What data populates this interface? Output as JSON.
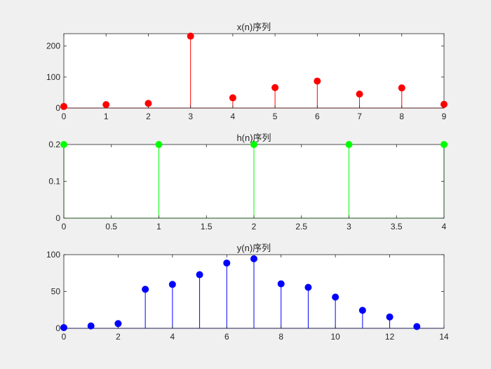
{
  "chart_data": [
    {
      "type": "stem",
      "title": "x(n)序列",
      "color": "#ff0000",
      "x": [
        0,
        1,
        2,
        3,
        4,
        5,
        6,
        7,
        8,
        9
      ],
      "y": [
        5,
        11,
        15,
        232,
        33,
        66,
        87,
        45,
        65,
        12
      ],
      "xlim": [
        0,
        9
      ],
      "ylim": [
        0,
        240
      ],
      "xticks": [
        0,
        1,
        2,
        3,
        4,
        5,
        6,
        7,
        8,
        9
      ],
      "xtick_labels": [
        "0",
        "1",
        "2",
        "3",
        "4",
        "5",
        "6",
        "7",
        "8",
        "9"
      ],
      "yticks": [
        0,
        100,
        200
      ],
      "ytick_labels": [
        "0",
        "100",
        "200"
      ],
      "xlabel": "",
      "ylabel": "",
      "grid": false
    },
    {
      "type": "stem",
      "title": "h(n)序列",
      "color": "#00ff00",
      "x": [
        0,
        1,
        2,
        3,
        4
      ],
      "y": [
        0.2,
        0.2,
        0.2,
        0.2,
        0.2
      ],
      "xlim": [
        0,
        4
      ],
      "ylim": [
        0,
        0.2
      ],
      "xticks": [
        0,
        0.5,
        1,
        1.5,
        2,
        2.5,
        3,
        3.5,
        4
      ],
      "xtick_labels": [
        "0",
        "0.5",
        "1",
        "1.5",
        "2",
        "2.5",
        "3",
        "3.5",
        "4"
      ],
      "yticks": [
        0,
        0.1,
        0.2
      ],
      "ytick_labels": [
        "0",
        "0.1",
        "0.2"
      ],
      "xlabel": "",
      "ylabel": "",
      "grid": false
    },
    {
      "type": "stem",
      "title": "y(n)序列",
      "color": "#0000ff",
      "x": [
        0,
        1,
        2,
        3,
        4,
        5,
        6,
        7,
        8,
        9,
        10,
        11,
        12,
        13
      ],
      "y": [
        1,
        3.2,
        6.4,
        53,
        59.6,
        72.8,
        88.6,
        94.4,
        60.4,
        55.6,
        42.4,
        24.4,
        15.4,
        2.4
      ],
      "xlim": [
        0,
        14
      ],
      "ylim": [
        0,
        100
      ],
      "xticks": [
        0,
        2,
        4,
        6,
        8,
        10,
        12,
        14
      ],
      "xtick_labels": [
        "0",
        "2",
        "4",
        "6",
        "8",
        "10",
        "12",
        "14"
      ],
      "yticks": [
        0,
        50,
        100
      ],
      "ytick_labels": [
        "0",
        "50",
        "100"
      ],
      "xlabel": "",
      "ylabel": "",
      "grid": false
    }
  ]
}
